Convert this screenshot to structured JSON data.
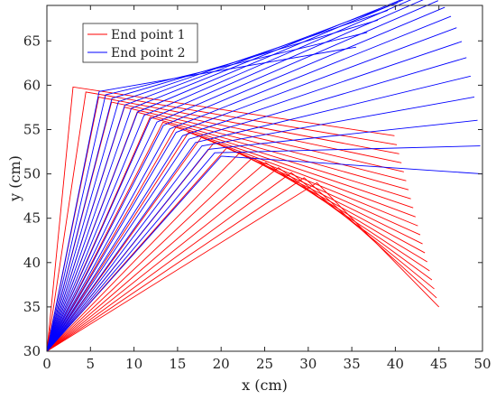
{
  "chart_data": {
    "type": "line",
    "xlabel": "x (cm)",
    "ylabel": "y (cm)",
    "xlim": [
      0,
      50
    ],
    "ylim": [
      30,
      69
    ],
    "xticks": [
      0,
      5,
      10,
      15,
      20,
      25,
      30,
      35,
      40,
      45,
      50
    ],
    "yticks": [
      30,
      35,
      40,
      45,
      50,
      55,
      60,
      65
    ],
    "grid": false,
    "legend_position": "top-left",
    "series": [
      {
        "name": "End point 1",
        "color": "#ff0000",
        "line_count": 20,
        "base_point": [
          0,
          30
        ],
        "elbow_start": [
          3,
          59.8
        ],
        "elbow_end": [
          31,
          49
        ],
        "tip_start": [
          39.9,
          54.3
        ],
        "tip_end": [
          45,
          35
        ],
        "tip_path": "straight"
      },
      {
        "name": "End point 2",
        "color": "#0000ff",
        "line_count": 20,
        "base_point": [
          0,
          30
        ],
        "elbow_start": [
          6,
          59.3
        ],
        "elbow_end": [
          20,
          52
        ],
        "tip_start": [
          35.5,
          64.3
        ],
        "tip_end": [
          50,
          50
        ],
        "tip_path": "curved",
        "tip_peak": [
          45.3,
          69.2
        ]
      }
    ]
  }
}
